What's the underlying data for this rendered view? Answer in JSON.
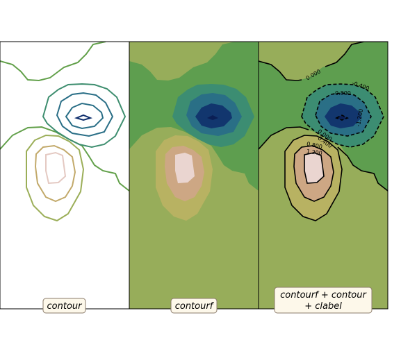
{
  "chart_data": [
    {
      "type": "contour",
      "panel": "contour",
      "label": "contour",
      "filled": false,
      "levels": [
        -1.2,
        -0.8,
        -0.4,
        0.0,
        0.4,
        0.8,
        1.2
      ],
      "colormap": "gist_earth",
      "axes_ticks": false
    },
    {
      "type": "contourf",
      "panel": "contourf",
      "label": "contourf",
      "filled": true,
      "levels": [
        -1.2,
        -0.8,
        -0.4,
        0.0,
        0.4,
        0.8,
        1.2
      ],
      "colormap": "gist_earth",
      "axes_ticks": false
    },
    {
      "type": "contourf+contour+clabel",
      "panel": "combined",
      "label": "contourf + contour\n+ clabel",
      "filled": true,
      "line_color": "#000000",
      "negative_linestyle": "dashed",
      "levels": [
        -1.2,
        -0.8,
        -0.4,
        0.0,
        0.4,
        0.8,
        1.2
      ],
      "contour_labels": [
        "0.000",
        "-0.400",
        "-0.800",
        "-1.200",
        "0.000",
        "0.400",
        "0.800",
        "1.200"
      ],
      "colormap": "gist_earth",
      "axes_ticks": false
    }
  ],
  "colors": {
    "fill_levels": [
      "#12366e",
      "#2a6f86",
      "#3c8d72",
      "#5e9e4f",
      "#97ad5a",
      "#b8b262",
      "#cda784",
      "#ead5d0"
    ],
    "line_levels": [
      "#0b2b6a",
      "#296e86",
      "#3e8e6f",
      "#62a04a",
      "#9bae58",
      "#c2a96a",
      "#e4c9c2"
    ],
    "label_box_face": "#fdf8ea",
    "label_box_edge": "#8b7b6b"
  }
}
